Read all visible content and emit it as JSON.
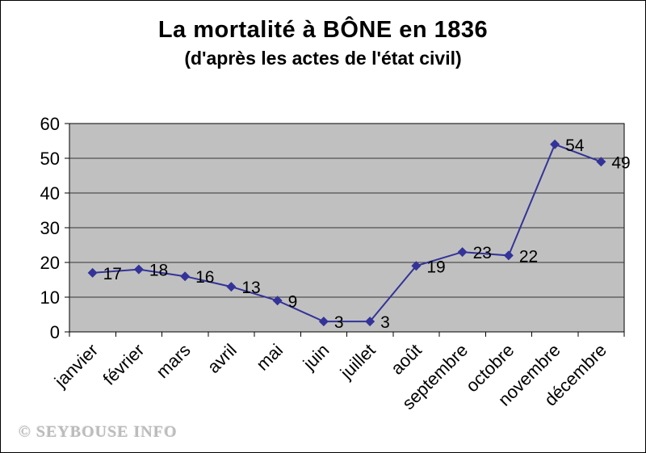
{
  "page": {
    "watermark": "© SEYBOUSE INFO"
  },
  "chart_data": {
    "type": "line",
    "title": "La mortalité à BÔNE en 1836",
    "subtitle": "(d'après les actes de l'état civil)",
    "categories": [
      "janvier",
      "février",
      "mars",
      "avril",
      "mai",
      "juin",
      "juillet",
      "août",
      "septembre",
      "octobre",
      "novembre",
      "décembre"
    ],
    "values": [
      17,
      18,
      16,
      13,
      9,
      3,
      3,
      19,
      23,
      22,
      54,
      49
    ],
    "xlabel": "",
    "ylabel": "",
    "ylim": [
      0,
      60
    ],
    "yticks": [
      0,
      10,
      20,
      30,
      40,
      50,
      60
    ],
    "grid": true,
    "legend": "none",
    "data_labels": true,
    "marker": "diamond",
    "colors": {
      "line": "#333399",
      "marker": "#333399",
      "plot_bg": "#c0c0c0",
      "grid": "#333333",
      "axis": "#000000",
      "text": "#000000"
    }
  }
}
